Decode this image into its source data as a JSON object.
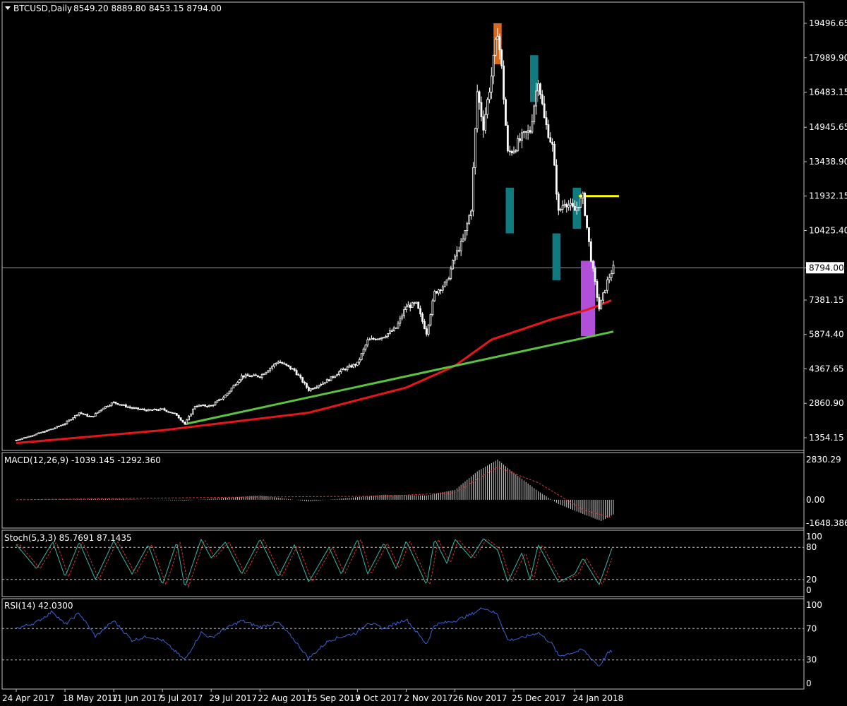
{
  "header": {
    "symbol": "BTCUSD,Daily",
    "ohlc": "8549.20 8889.80 8453.15 8794.00"
  },
  "current_price_label": "8794.00",
  "colors": {
    "background": "#000000",
    "candle": "#ffffff",
    "ma_red": "#e8161b",
    "trend_green": "#5cc23f",
    "resistance_yellow": "#ffff00",
    "box_orange": "#d56a1f",
    "box_teal": "#0f7a80",
    "box_violet": "#b04fd8",
    "rsi_line": "#3a5fd9",
    "stoch_main": "#37b8a6",
    "stoch_signal": "#e03030",
    "macd_hist": "#cfcfcf",
    "macd_signal": "#e03030"
  },
  "chart_data": [
    {
      "type": "candlestick",
      "title": "BTCUSD,Daily",
      "ohlc_last": {
        "open": 8549.2,
        "high": 8889.8,
        "low": 8453.15,
        "close": 8794.0
      },
      "x_tick_labels": [
        "24 Apr 2017",
        "18 May 2017",
        "11 Jun 2017",
        "5 Jul 2017",
        "29 Jul 2017",
        "22 Aug 2017",
        "15 Sep 2017",
        "9 Oct 2017",
        "2 Nov 2017",
        "26 Nov 2017",
        "25 Dec 2017",
        "24 Jan 2018"
      ],
      "y_tick_labels": [
        "19496.65",
        "17989.90",
        "16483.15",
        "14945.65",
        "13438.90",
        "11932.15",
        "10425.40",
        "8794.00",
        "7381.15",
        "5874.40",
        "4367.65",
        "2860.90",
        "1354.15"
      ],
      "close_series": [
        {
          "date": "2017-04-24",
          "close": 1250
        },
        {
          "date": "2017-05-04",
          "close": 1520
        },
        {
          "date": "2017-05-12",
          "close": 1750
        },
        {
          "date": "2017-05-18",
          "close": 1980
        },
        {
          "date": "2017-05-25",
          "close": 2450
        },
        {
          "date": "2017-05-31",
          "close": 2250
        },
        {
          "date": "2017-06-06",
          "close": 2680
        },
        {
          "date": "2017-06-11",
          "close": 2900
        },
        {
          "date": "2017-06-20",
          "close": 2650
        },
        {
          "date": "2017-06-28",
          "close": 2550
        },
        {
          "date": "2017-07-05",
          "close": 2600
        },
        {
          "date": "2017-07-12",
          "close": 2350
        },
        {
          "date": "2017-07-16",
          "close": 1950
        },
        {
          "date": "2017-07-21",
          "close": 2750
        },
        {
          "date": "2017-07-29",
          "close": 2750
        },
        {
          "date": "2017-08-05",
          "close": 3200
        },
        {
          "date": "2017-08-13",
          "close": 4050
        },
        {
          "date": "2017-08-22",
          "close": 4050
        },
        {
          "date": "2017-08-31",
          "close": 4700
        },
        {
          "date": "2017-09-08",
          "close": 4300
        },
        {
          "date": "2017-09-15",
          "close": 3450
        },
        {
          "date": "2017-09-25",
          "close": 3900
        },
        {
          "date": "2017-10-01",
          "close": 4300
        },
        {
          "date": "2017-10-09",
          "close": 4600
        },
        {
          "date": "2017-10-14",
          "close": 5600
        },
        {
          "date": "2017-10-22",
          "close": 5800
        },
        {
          "date": "2017-10-28",
          "close": 6150
        },
        {
          "date": "2017-11-02",
          "close": 7100
        },
        {
          "date": "2017-11-07",
          "close": 7200
        },
        {
          "date": "2017-11-12",
          "close": 5950
        },
        {
          "date": "2017-11-16",
          "close": 7700
        },
        {
          "date": "2017-11-22",
          "close": 8150
        },
        {
          "date": "2017-11-26",
          "close": 9300
        },
        {
          "date": "2017-11-30",
          "close": 10000
        },
        {
          "date": "2017-12-04",
          "close": 11400
        },
        {
          "date": "2017-12-07",
          "close": 16500
        },
        {
          "date": "2017-12-10",
          "close": 15000
        },
        {
          "date": "2017-12-14",
          "close": 17200
        },
        {
          "date": "2017-12-17",
          "close": 19200
        },
        {
          "date": "2017-12-19",
          "close": 17500
        },
        {
          "date": "2017-12-22",
          "close": 13800
        },
        {
          "date": "2017-12-25",
          "close": 14000
        },
        {
          "date": "2017-12-29",
          "close": 14500
        },
        {
          "date": "2018-01-02",
          "close": 14800
        },
        {
          "date": "2018-01-06",
          "close": 17100
        },
        {
          "date": "2018-01-09",
          "close": 15300
        },
        {
          "date": "2018-01-13",
          "close": 14100
        },
        {
          "date": "2018-01-16",
          "close": 11200
        },
        {
          "date": "2018-01-19",
          "close": 11700
        },
        {
          "date": "2018-01-24",
          "close": 11300
        },
        {
          "date": "2018-01-28",
          "close": 11900
        },
        {
          "date": "2018-02-01",
          "close": 9200
        },
        {
          "date": "2018-02-05",
          "close": 7000
        },
        {
          "date": "2018-02-09",
          "close": 8200
        },
        {
          "date": "2018-02-12",
          "close": 8794
        }
      ],
      "moving_average_red": [
        {
          "date": "2017-04-24",
          "value": 1120
        },
        {
          "date": "2017-07-05",
          "value": 1680
        },
        {
          "date": "2017-09-15",
          "value": 2450
        },
        {
          "date": "2017-11-02",
          "value": 3550
        },
        {
          "date": "2017-11-26",
          "value": 4500
        },
        {
          "date": "2017-12-14",
          "value": 5650
        },
        {
          "date": "2018-01-13",
          "value": 6550
        },
        {
          "date": "2018-01-30",
          "value": 6950
        },
        {
          "date": "2018-02-12",
          "value": 7400
        }
      ],
      "trendline_green": [
        {
          "date": "2017-07-16",
          "value": 1950
        },
        {
          "date": "2018-02-12",
          "value": 6000
        }
      ],
      "resistance_yellow": {
        "from": "2018-01-26",
        "to": "2018-02-12",
        "value": 11932.15
      },
      "boxes": [
        {
          "color": "orange",
          "from": "2017-12-15",
          "to": "2017-12-19",
          "low": 17700,
          "high": 19500
        },
        {
          "color": "teal",
          "from": "2017-12-21",
          "to": "2017-12-25",
          "low": 10300,
          "high": 12300
        },
        {
          "color": "teal",
          "from": "2018-01-02",
          "to": "2018-01-06",
          "low": 16050,
          "high": 18100
        },
        {
          "color": "teal",
          "from": "2018-01-13",
          "to": "2018-01-17",
          "low": 8250,
          "high": 10300
        },
        {
          "color": "teal",
          "from": "2018-01-23",
          "to": "2018-01-27",
          "low": 10500,
          "high": 12300
        },
        {
          "color": "violet",
          "from": "2018-01-27",
          "to": "2018-02-03",
          "low": 5800,
          "high": 9100
        }
      ]
    },
    {
      "type": "bar",
      "title": "MACD(12,26,9) -1039.145 -1292.360",
      "y_tick_labels": [
        "2830.29",
        "0.00",
        "-1648.386"
      ],
      "histogram": [
        {
          "date": "2017-04-24",
          "value": 0
        },
        {
          "date": "2017-06-11",
          "value": 60
        },
        {
          "date": "2017-07-16",
          "value": -60
        },
        {
          "date": "2017-08-22",
          "value": 300
        },
        {
          "date": "2017-09-15",
          "value": -120
        },
        {
          "date": "2017-10-22",
          "value": 350
        },
        {
          "date": "2017-11-12",
          "value": 300
        },
        {
          "date": "2017-11-26",
          "value": 700
        },
        {
          "date": "2017-12-07",
          "value": 2000
        },
        {
          "date": "2017-12-17",
          "value": 2830
        },
        {
          "date": "2017-12-25",
          "value": 1900
        },
        {
          "date": "2018-01-06",
          "value": 600
        },
        {
          "date": "2018-01-16",
          "value": -300
        },
        {
          "date": "2018-01-28",
          "value": -1000
        },
        {
          "date": "2018-02-06",
          "value": -1500
        },
        {
          "date": "2018-02-12",
          "value": -1039
        }
      ],
      "signal": [
        {
          "date": "2017-04-24",
          "value": 0
        },
        {
          "date": "2017-08-22",
          "value": 200
        },
        {
          "date": "2017-10-22",
          "value": 250
        },
        {
          "date": "2017-11-26",
          "value": 500
        },
        {
          "date": "2017-12-17",
          "value": 2300
        },
        {
          "date": "2018-01-06",
          "value": 1200
        },
        {
          "date": "2018-01-28",
          "value": -700
        },
        {
          "date": "2018-02-12",
          "value": -1292
        }
      ]
    },
    {
      "type": "line",
      "title": "Stoch(5,3,3) 85.7691 87.1435",
      "y_tick_labels": [
        "100",
        "80",
        "20",
        "0"
      ],
      "levels": [
        80,
        20
      ],
      "main_line": [
        {
          "date": "2017-04-24",
          "value": 85
        },
        {
          "date": "2017-05-04",
          "value": 40
        },
        {
          "date": "2017-05-12",
          "value": 90
        },
        {
          "date": "2017-05-18",
          "value": 25
        },
        {
          "date": "2017-05-25",
          "value": 90
        },
        {
          "date": "2017-06-02",
          "value": 20
        },
        {
          "date": "2017-06-11",
          "value": 92
        },
        {
          "date": "2017-06-20",
          "value": 30
        },
        {
          "date": "2017-06-28",
          "value": 85
        },
        {
          "date": "2017-07-05",
          "value": 10
        },
        {
          "date": "2017-07-12",
          "value": 90
        },
        {
          "date": "2017-07-16",
          "value": 5
        },
        {
          "date": "2017-07-24",
          "value": 95
        },
        {
          "date": "2017-07-29",
          "value": 60
        },
        {
          "date": "2017-08-05",
          "value": 90
        },
        {
          "date": "2017-08-13",
          "value": 30
        },
        {
          "date": "2017-08-22",
          "value": 95
        },
        {
          "date": "2017-08-31",
          "value": 25
        },
        {
          "date": "2017-09-08",
          "value": 85
        },
        {
          "date": "2017-09-15",
          "value": 15
        },
        {
          "date": "2017-09-25",
          "value": 80
        },
        {
          "date": "2017-10-01",
          "value": 30
        },
        {
          "date": "2017-10-09",
          "value": 95
        },
        {
          "date": "2017-10-14",
          "value": 30
        },
        {
          "date": "2017-10-22",
          "value": 88
        },
        {
          "date": "2017-10-28",
          "value": 40
        },
        {
          "date": "2017-11-02",
          "value": 92
        },
        {
          "date": "2017-11-12",
          "value": 10
        },
        {
          "date": "2017-11-16",
          "value": 95
        },
        {
          "date": "2017-11-22",
          "value": 50
        },
        {
          "date": "2017-11-26",
          "value": 95
        },
        {
          "date": "2017-12-04",
          "value": 60
        },
        {
          "date": "2017-12-10",
          "value": 96
        },
        {
          "date": "2017-12-17",
          "value": 75
        },
        {
          "date": "2017-12-22",
          "value": 15
        },
        {
          "date": "2017-12-29",
          "value": 70
        },
        {
          "date": "2018-01-02",
          "value": 20
        },
        {
          "date": "2018-01-06",
          "value": 85
        },
        {
          "date": "2018-01-16",
          "value": 15
        },
        {
          "date": "2018-01-24",
          "value": 30
        },
        {
          "date": "2018-01-28",
          "value": 60
        },
        {
          "date": "2018-02-05",
          "value": 10
        },
        {
          "date": "2018-02-12",
          "value": 85.7691
        }
      ]
    },
    {
      "type": "line",
      "title": "RSI(14) 42.0300",
      "y_tick_labels": [
        "100",
        "70",
        "30",
        "0"
      ],
      "levels": [
        70,
        30
      ],
      "series": [
        {
          "date": "2017-04-24",
          "value": 70
        },
        {
          "date": "2017-05-04",
          "value": 78
        },
        {
          "date": "2017-05-12",
          "value": 92
        },
        {
          "date": "2017-05-18",
          "value": 75
        },
        {
          "date": "2017-05-25",
          "value": 90
        },
        {
          "date": "2017-06-02",
          "value": 60
        },
        {
          "date": "2017-06-11",
          "value": 80
        },
        {
          "date": "2017-06-20",
          "value": 55
        },
        {
          "date": "2017-06-28",
          "value": 60
        },
        {
          "date": "2017-07-05",
          "value": 55
        },
        {
          "date": "2017-07-16",
          "value": 30
        },
        {
          "date": "2017-07-24",
          "value": 65
        },
        {
          "date": "2017-07-29",
          "value": 58
        },
        {
          "date": "2017-08-05",
          "value": 70
        },
        {
          "date": "2017-08-13",
          "value": 80
        },
        {
          "date": "2017-08-22",
          "value": 72
        },
        {
          "date": "2017-08-31",
          "value": 78
        },
        {
          "date": "2017-09-08",
          "value": 55
        },
        {
          "date": "2017-09-15",
          "value": 32
        },
        {
          "date": "2017-09-25",
          "value": 55
        },
        {
          "date": "2017-10-09",
          "value": 65
        },
        {
          "date": "2017-10-14",
          "value": 78
        },
        {
          "date": "2017-10-22",
          "value": 70
        },
        {
          "date": "2017-11-02",
          "value": 82
        },
        {
          "date": "2017-11-12",
          "value": 50
        },
        {
          "date": "2017-11-16",
          "value": 75
        },
        {
          "date": "2017-11-26",
          "value": 80
        },
        {
          "date": "2017-12-04",
          "value": 88
        },
        {
          "date": "2017-12-10",
          "value": 97
        },
        {
          "date": "2017-12-17",
          "value": 88
        },
        {
          "date": "2017-12-22",
          "value": 55
        },
        {
          "date": "2017-12-29",
          "value": 58
        },
        {
          "date": "2018-01-06",
          "value": 65
        },
        {
          "date": "2018-01-13",
          "value": 50
        },
        {
          "date": "2018-01-16",
          "value": 35
        },
        {
          "date": "2018-01-24",
          "value": 40
        },
        {
          "date": "2018-01-28",
          "value": 43
        },
        {
          "date": "2018-02-05",
          "value": 22
        },
        {
          "date": "2018-02-09",
          "value": 38
        },
        {
          "date": "2018-02-12",
          "value": 42.03
        }
      ]
    }
  ]
}
